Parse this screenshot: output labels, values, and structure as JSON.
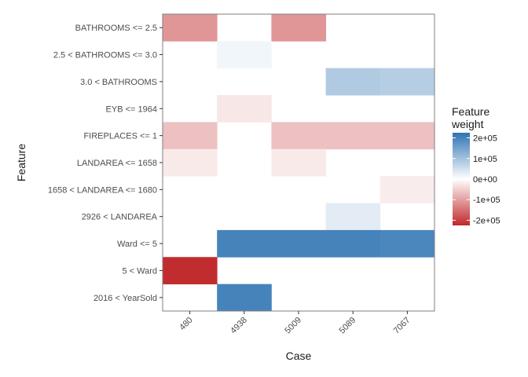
{
  "chart_data": {
    "type": "heatmap",
    "xlabel": "Case",
    "ylabel": "Feature",
    "x_categories": [
      "480",
      "4938",
      "5009",
      "5089",
      "7067"
    ],
    "y_categories": [
      "BATHROOMS <= 2.5",
      "2.5 < BATHROOMS <= 3.0",
      "3.0 < BATHROOMS",
      "EYB <= 1964",
      "FIREPLACES <= 1",
      "LANDAREA <= 1658",
      "1658 < LANDAREA <= 1680",
      "2926 < LANDAREA",
      "Ward <= 5",
      "5 < Ward",
      "2016 < YearSold"
    ],
    "cells": [
      {
        "case": "480",
        "feature": "BATHROOMS <= 2.5",
        "weight": -110000
      },
      {
        "case": "5009",
        "feature": "BATHROOMS <= 2.5",
        "weight": -110000
      },
      {
        "case": "4938",
        "feature": "2.5 < BATHROOMS <= 3.0",
        "weight": 15000
      },
      {
        "case": "5089",
        "feature": "3.0 < BATHROOMS",
        "weight": 85000
      },
      {
        "case": "7067",
        "feature": "3.0 < BATHROOMS",
        "weight": 80000
      },
      {
        "case": "4938",
        "feature": "EYB <= 1964",
        "weight": -25000
      },
      {
        "case": "480",
        "feature": "FIREPLACES <= 1",
        "weight": -65000
      },
      {
        "case": "5009",
        "feature": "FIREPLACES <= 1",
        "weight": -65000
      },
      {
        "case": "5089",
        "feature": "FIREPLACES <= 1",
        "weight": -65000
      },
      {
        "case": "7067",
        "feature": "FIREPLACES <= 1",
        "weight": -65000
      },
      {
        "case": "480",
        "feature": "LANDAREA <= 1658",
        "weight": -22000
      },
      {
        "case": "5009",
        "feature": "LANDAREA <= 1658",
        "weight": -22000
      },
      {
        "case": "7067",
        "feature": "1658 < LANDAREA <= 1680",
        "weight": -20000
      },
      {
        "case": "5089",
        "feature": "2926 < LANDAREA",
        "weight": 30000
      },
      {
        "case": "4938",
        "feature": "Ward <= 5",
        "weight": 200000
      },
      {
        "case": "5009",
        "feature": "Ward <= 5",
        "weight": 200000
      },
      {
        "case": "5089",
        "feature": "Ward <= 5",
        "weight": 200000
      },
      {
        "case": "7067",
        "feature": "Ward <= 5",
        "weight": 195000
      },
      {
        "case": "480",
        "feature": "5 < Ward",
        "weight": -220000
      },
      {
        "case": "4938",
        "feature": "2016 < YearSold",
        "weight": 200000
      }
    ],
    "legend": {
      "title_lines": [
        "Feature",
        "weight"
      ],
      "placement": "right",
      "ticks": [
        {
          "value": 200000,
          "label": "2e+05"
        },
        {
          "value": 100000,
          "label": "1e+05"
        },
        {
          "value": 0,
          "label": "0e+00"
        },
        {
          "value": -100000,
          "label": "-1e+05"
        },
        {
          "value": -200000,
          "label": "-2e+05"
        }
      ],
      "range": [
        -225000,
        225000
      ]
    },
    "colors": {
      "negative": "#c0282a",
      "zero": "#ffffff",
      "positive": "#2f74b3",
      "panel_border": "#7f7f7f"
    }
  }
}
